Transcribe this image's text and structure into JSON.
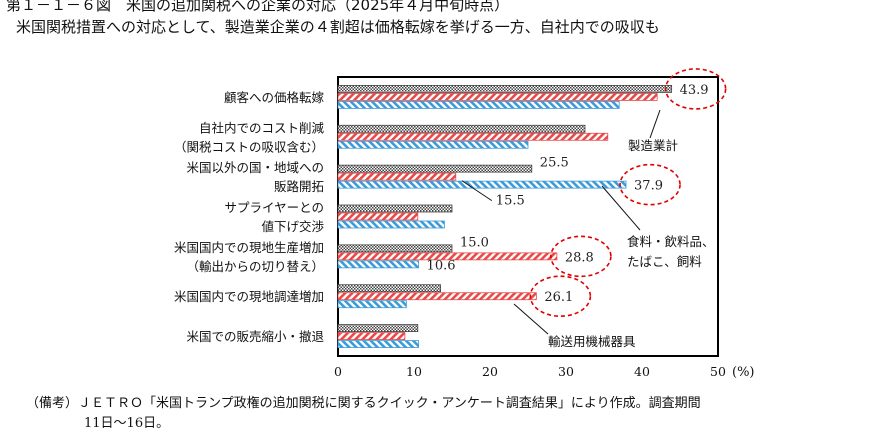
{
  "header": {
    "title": "第１－１－６図　米国の追加関税への企業の対応（2025年４月中旬時点）",
    "subtitle": "米国関税措置への対応として、製造業企業の４割超は価格転嫁を挙げる一方、自社内での吸収も"
  },
  "note": {
    "line1": "（備考）ＪＥＴＲＯ「米国トランプ政権の追加関税に関するクイック・アンケート調査結果」により作成。調査期間",
    "line2": "11日～16日。"
  },
  "colors": {
    "manufacturing": "#444444",
    "food": "#e84a4a",
    "transport": "#3b9ad9",
    "highlight": "#e00000"
  },
  "chart_data": {
    "type": "bar",
    "orientation": "horizontal",
    "categories": [
      [
        "顧客への価格転嫁"
      ],
      [
        "自社内でのコスト削減",
        "（関税コストの吸収含む）"
      ],
      [
        "米国以外の国・地域への",
        "販路開拓"
      ],
      [
        "サプライヤーとの",
        "値下げ交渉"
      ],
      [
        "米国国内での現地生産増加",
        "（輸出からの切り替え）"
      ],
      [
        "米国国内での現地調達増加"
      ],
      [
        "米国での販売縮小・撤退"
      ]
    ],
    "series": [
      {
        "name": "製造業計",
        "values": [
          43.9,
          32.5,
          25.5,
          15.0,
          15.0,
          13.5,
          10.5
        ]
      },
      {
        "name": "食料・飲料品、たばこ、飼料",
        "values": [
          42.0,
          35.5,
          15.5,
          10.5,
          28.8,
          26.1,
          8.8
        ]
      },
      {
        "name": "輸送用機械器具",
        "values": [
          37.0,
          25.0,
          37.9,
          14.0,
          10.6,
          9.0,
          10.6
        ]
      }
    ],
    "data_labels": [
      {
        "series": 0,
        "category": 0,
        "text": "43.9"
      },
      {
        "series": 0,
        "category": 2,
        "text": "25.5"
      },
      {
        "series": 1,
        "category": 2,
        "text": "15.5"
      },
      {
        "series": 2,
        "category": 2,
        "text": "37.9"
      },
      {
        "series": 0,
        "category": 4,
        "text": "15.0"
      },
      {
        "series": 1,
        "category": 4,
        "text": "28.8"
      },
      {
        "series": 2,
        "category": 4,
        "text": "10.6"
      },
      {
        "series": 1,
        "category": 5,
        "text": "26.1"
      }
    ],
    "highlighted_labels": [
      "43.9",
      "37.9",
      "28.8",
      "26.1"
    ],
    "xlim": [
      0,
      50
    ],
    "xticks": [
      0,
      10,
      20,
      30,
      40,
      50
    ],
    "xunit": "(%)",
    "callouts": [
      {
        "text": [
          "製造業計"
        ],
        "series": 0
      },
      {
        "text": [
          "食料・飲料品、",
          "たばこ、飼料"
        ],
        "series": 1
      },
      {
        "text": [
          "輸送用機械器具"
        ],
        "series": 2
      }
    ]
  }
}
